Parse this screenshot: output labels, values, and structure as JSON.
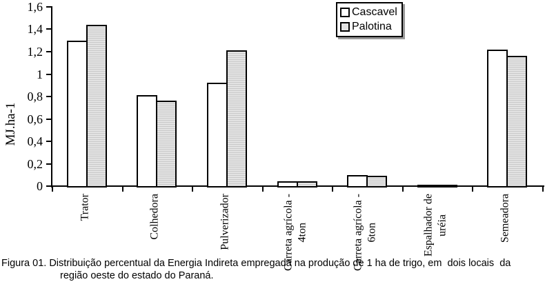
{
  "figure": {
    "caption_line1": "Figura 01. Distribuição percentual da Energia Indireta empregada na produção de 1 ha de trigo, em  dois locais  da",
    "caption_line2": "região oeste do estado do Paraná."
  },
  "colors": {
    "axis": "#000000",
    "cascavel_fill": "#ffffff",
    "palotina_fill": "#e3e3e3",
    "palotina_stripe": "#c9c9c9",
    "legend_shadow": "#9a9a9a"
  },
  "chart_data": {
    "type": "bar",
    "title": "",
    "categories": [
      "Trator",
      "Colhedora",
      "Pulverizador",
      "Carreta agrícola - 4ton",
      "Carreta agrícola - 6ton",
      "Espalhador de uréia",
      "Semeadora"
    ],
    "category_label_lines": [
      [
        "Trator"
      ],
      [
        "Colhedora"
      ],
      [
        "Pulverizador"
      ],
      [
        "Carreta agrícola -",
        "4ton"
      ],
      [
        "Carreta agrícola -",
        "6ton"
      ],
      [
        "Espalhador de",
        "uréia"
      ],
      [
        "Semeadora"
      ]
    ],
    "series": [
      {
        "name": "Cascavel",
        "values": [
          1.3,
          0.81,
          0.92,
          0.04,
          0.1,
          0.01,
          1.22
        ]
      },
      {
        "name": "Palotina",
        "values": [
          1.44,
          0.76,
          1.21,
          0.04,
          0.09,
          0.01,
          1.16
        ]
      }
    ],
    "xlabel": "",
    "ylabel": "MJ.ha-1",
    "ylim": [
      0,
      1.6
    ],
    "ytick_step": 0.2,
    "ytick_labels": [
      "0",
      "0,2",
      "0,4",
      "0,6",
      "0,8",
      "1",
      "1,2",
      "1,4",
      "1,6"
    ],
    "legend": {
      "entries": [
        "Cascavel",
        "Palotina"
      ],
      "position": "top-center"
    },
    "grid": false
  }
}
